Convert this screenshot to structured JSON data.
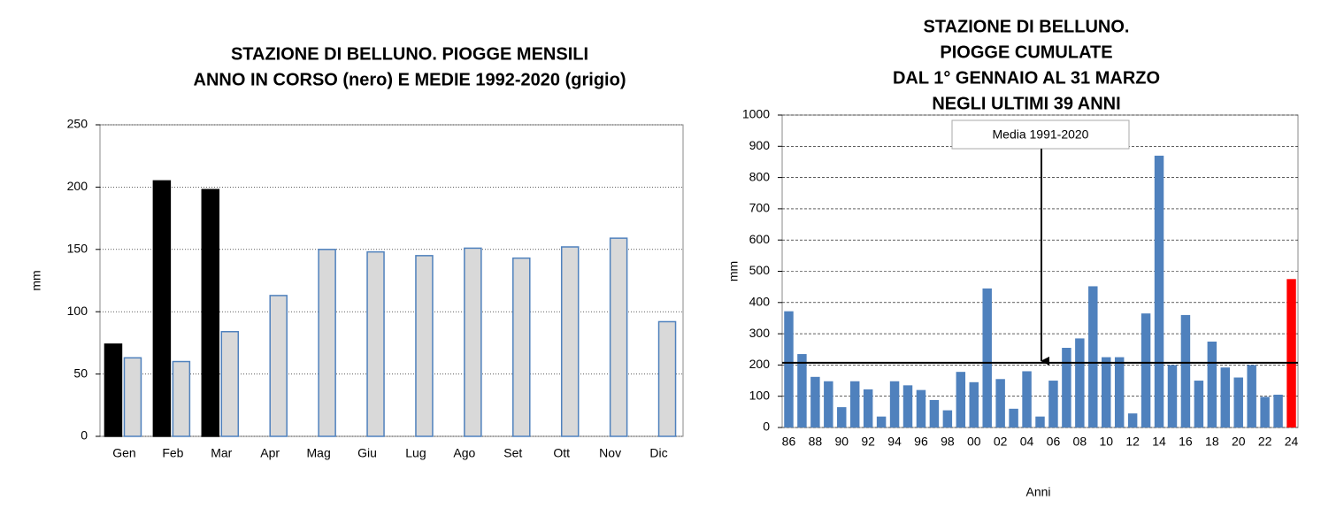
{
  "chart_data": [
    {
      "type": "bar",
      "title": [
        "STAZIONE DI BELLUNO. PIOGGE MENSILI",
        "ANNO IN CORSO (nero) E MEDIE 1992-2020 (grigio)"
      ],
      "y_label": "mm",
      "categories": [
        "Gen",
        "Feb",
        "Mar",
        "Apr",
        "Mag",
        "Giu",
        "Lug",
        "Ago",
        "Set",
        "Ott",
        "Nov",
        "Dic"
      ],
      "series": [
        {
          "color": "#000000",
          "values": [
            74,
            205,
            198,
            null,
            null,
            null,
            null,
            null,
            null,
            null,
            null,
            null
          ]
        },
        {
          "color": "#d9d9d9",
          "edge_color": "#4f81bd",
          "values": [
            63,
            60,
            84,
            113,
            150,
            148,
            145,
            151,
            143,
            152,
            159,
            92
          ]
        }
      ],
      "ylim": [
        0,
        250
      ],
      "yticks": [
        0,
        50,
        100,
        150,
        200,
        250
      ],
      "grid": true
    },
    {
      "type": "bar",
      "title": [
        "STAZIONE DI BELLUNO.",
        "PIOGGE CUMULATE",
        "DAL 1° GENNAIO AL 31 MARZO",
        "NEGLI ULTIMI 39 ANNI"
      ],
      "y_label": "mm",
      "x_label": "Anni",
      "categories": [
        "86",
        null,
        "88",
        null,
        "90",
        null,
        "92",
        null,
        "94",
        null,
        "96",
        null,
        "98",
        null,
        "00",
        null,
        "02",
        null,
        "04",
        null,
        "06",
        null,
        "08",
        null,
        "10",
        null,
        "12",
        null,
        "14",
        null,
        "16",
        null,
        "18",
        null,
        "20",
        null,
        "22",
        null,
        "24"
      ],
      "values": [
        372,
        235,
        162,
        148,
        65,
        148,
        122,
        35,
        148,
        135,
        120,
        88,
        55,
        178,
        145,
        445,
        155,
        60,
        180,
        35,
        150,
        255,
        285,
        452,
        225,
        225,
        45,
        365,
        870,
        200,
        360,
        150,
        275,
        192,
        160,
        200,
        98,
        105,
        475
      ],
      "color": "#4f81bd",
      "last_color": "#ff0000",
      "reference_line": {
        "value": 207,
        "label": "Media 1991-2020"
      },
      "ylim": [
        0,
        1000
      ],
      "yticks": [
        0,
        100,
        200,
        300,
        400,
        500,
        600,
        700,
        800,
        900,
        1000
      ],
      "grid": true
    }
  ]
}
